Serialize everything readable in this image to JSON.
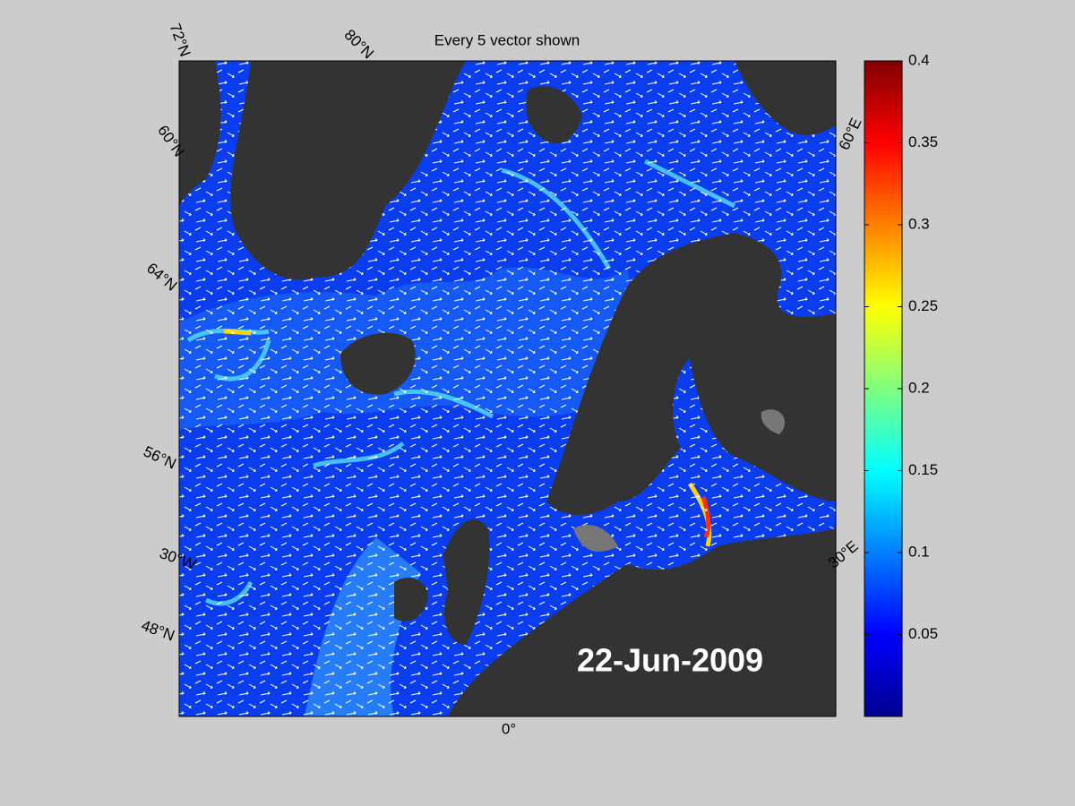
{
  "title": "Every 5 vector shown",
  "date_label": "22-Jun-2009",
  "map_labels": [
    "72°N",
    "80°N",
    "60°N",
    "64°N",
    "56°N",
    "30°W",
    "48°N",
    "0°",
    "30°E",
    "60°E"
  ],
  "colorbar": {
    "lim": [
      0,
      0.4
    ],
    "ticks": [
      0.05,
      0.1,
      0.15,
      0.2,
      0.25,
      0.3,
      0.35,
      0.4
    ]
  }
}
